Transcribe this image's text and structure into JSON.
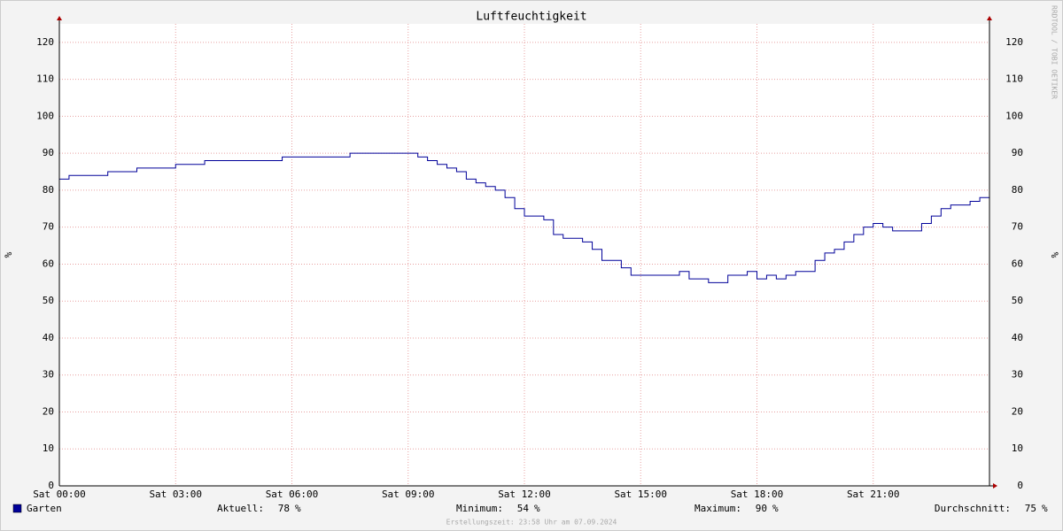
{
  "chart_data": {
    "type": "line",
    "title": "Luftfeuchtigkeit",
    "y_label": "%",
    "side_text": "RRDTOOL / TOBI OETIKER",
    "footer": "Erstellungszeit: 23:58 Uhr am 07.09.2024",
    "xlim": [
      0,
      24
    ],
    "xticks": [
      {
        "value": 0,
        "label": "Sat 00:00"
      },
      {
        "value": 3,
        "label": "Sat 03:00"
      },
      {
        "value": 6,
        "label": "Sat 06:00"
      },
      {
        "value": 9,
        "label": "Sat 09:00"
      },
      {
        "value": 12,
        "label": "Sat 12:00"
      },
      {
        "value": 15,
        "label": "Sat 15:00"
      },
      {
        "value": 18,
        "label": "Sat 18:00"
      },
      {
        "value": 21,
        "label": "Sat 21:00"
      }
    ],
    "ylim": [
      0,
      125
    ],
    "yticks": [
      0,
      10,
      20,
      30,
      40,
      50,
      60,
      70,
      80,
      90,
      100,
      110,
      120
    ],
    "grid": true,
    "step": true,
    "x": [
      0,
      0.25,
      0.5,
      0.75,
      1,
      1.25,
      1.5,
      1.75,
      2,
      2.25,
      2.5,
      2.75,
      3,
      3.25,
      3.5,
      3.75,
      4,
      4.25,
      4.5,
      4.75,
      5,
      5.25,
      5.5,
      5.75,
      6,
      6.25,
      6.5,
      6.75,
      7,
      7.25,
      7.5,
      7.75,
      8,
      8.25,
      8.5,
      8.75,
      9,
      9.25,
      9.5,
      9.75,
      10,
      10.25,
      10.5,
      10.75,
      11,
      11.25,
      11.5,
      11.75,
      12,
      12.25,
      12.5,
      12.75,
      13,
      13.25,
      13.5,
      13.75,
      14,
      14.25,
      14.5,
      14.75,
      15,
      15.25,
      15.5,
      15.75,
      16,
      16.25,
      16.5,
      16.75,
      17,
      17.25,
      17.5,
      17.75,
      18,
      18.25,
      18.5,
      18.75,
      19,
      19.25,
      19.5,
      19.75,
      20,
      20.25,
      20.5,
      20.75,
      21,
      21.25,
      21.5,
      21.75,
      22,
      22.25,
      22.5,
      22.75,
      23,
      23.25,
      23.5,
      23.75,
      24
    ],
    "series": [
      {
        "name": "Garten",
        "color": "#000099",
        "values": [
          83,
          84,
          84,
          84,
          84,
          85,
          85,
          85,
          86,
          86,
          86,
          86,
          87,
          87,
          87,
          88,
          88,
          88,
          88,
          88,
          88,
          88,
          88,
          89,
          89,
          89,
          89,
          89,
          89,
          89,
          90,
          90,
          90,
          90,
          90,
          90,
          90,
          89,
          88,
          87,
          86,
          85,
          83,
          82,
          81,
          80,
          78,
          75,
          73,
          73,
          72,
          68,
          67,
          67,
          66,
          64,
          61,
          61,
          59,
          57,
          57,
          57,
          57,
          57,
          58,
          56,
          56,
          55,
          55,
          57,
          57,
          58,
          56,
          57,
          56,
          57,
          58,
          58,
          61,
          63,
          64,
          66,
          68,
          70,
          71,
          70,
          69,
          69,
          69,
          71,
          73,
          75,
          76,
          76,
          77,
          78,
          78
        ]
      }
    ],
    "stats": [
      {
        "label": "Aktuell:",
        "value": 78,
        "unit": "%"
      },
      {
        "label": "Minimum:",
        "value": 54,
        "unit": "%"
      },
      {
        "label": "Maximum:",
        "value": 90,
        "unit": "%"
      },
      {
        "label": "Durchschnitt:",
        "value": 75,
        "unit": "%"
      }
    ]
  }
}
